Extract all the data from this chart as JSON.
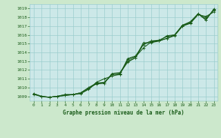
{
  "title": "Graphe pression niveau de la mer (hPa)",
  "background_color": "#cce8cc",
  "plot_bg_color": "#cce8e8",
  "grid_color": "#99cccc",
  "line_color": "#1a5c1a",
  "x_ticks": [
    0,
    1,
    2,
    3,
    4,
    5,
    6,
    7,
    8,
    9,
    10,
    11,
    12,
    13,
    14,
    15,
    16,
    17,
    18,
    19,
    20,
    21,
    22,
    23
  ],
  "y_min": 1008.5,
  "y_max": 1019.5,
  "y_ticks": [
    1009,
    1010,
    1011,
    1012,
    1013,
    1014,
    1015,
    1016,
    1017,
    1018,
    1019
  ],
  "series": [
    [
      1009.3,
      1009.0,
      1008.9,
      1009.0,
      1009.1,
      1009.2,
      1009.3,
      1009.8,
      1010.5,
      1010.5,
      1011.5,
      1011.6,
      1012.9,
      1013.4,
      1015.1,
      1015.1,
      1015.3,
      1015.9,
      1016.0,
      1017.0,
      1017.3,
      1018.3,
      1018.1,
      1018.6
    ],
    [
      1009.3,
      1008.95,
      1008.9,
      1009.0,
      1009.1,
      1009.2,
      1009.4,
      1009.8,
      1010.6,
      1011.0,
      1011.3,
      1011.5,
      1013.2,
      1013.5,
      1014.5,
      1015.2,
      1015.3,
      1015.6,
      1015.9,
      1017.0,
      1017.4,
      1018.4,
      1017.9,
      1018.8
    ],
    [
      1009.2,
      1009.0,
      1008.9,
      1009.0,
      1009.2,
      1009.2,
      1009.4,
      1009.95,
      1010.4,
      1010.5,
      1011.6,
      1011.7,
      1013.0,
      1013.4,
      1014.9,
      1015.3,
      1015.3,
      1015.6,
      1016.0,
      1017.1,
      1017.5,
      1018.4,
      1017.7,
      1018.9
    ],
    [
      1009.3,
      1009.0,
      1008.9,
      1009.0,
      1009.2,
      1009.2,
      1009.4,
      1010.0,
      1010.5,
      1010.6,
      1011.5,
      1011.5,
      1013.3,
      1013.6,
      1014.9,
      1015.3,
      1015.4,
      1015.8,
      1016.0,
      1017.1,
      1017.4,
      1018.4,
      1017.7,
      1018.95
    ]
  ],
  "marker": "+",
  "marker_size": 3.5,
  "linewidth": 0.8
}
